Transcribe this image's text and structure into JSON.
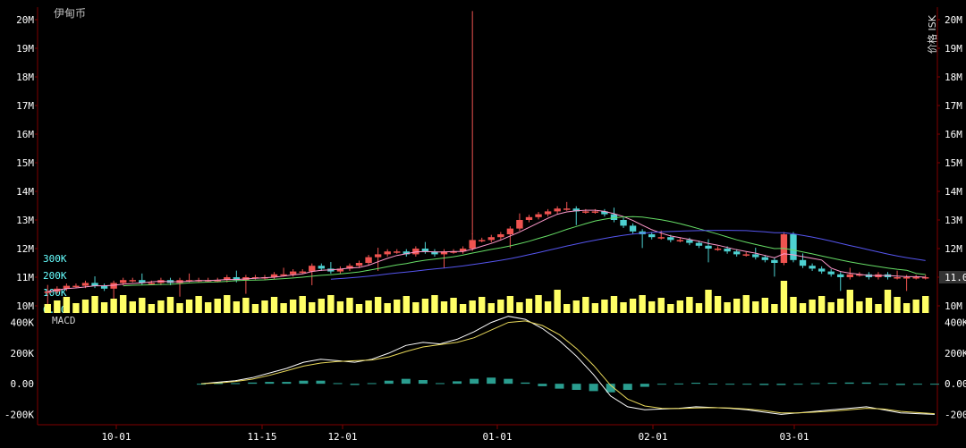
{
  "chart_title": "伊甸币",
  "unit_label": "价格 ISK",
  "current_price_label": "11.0M",
  "macd_label": "MACD",
  "colors": {
    "up": "#ef5350",
    "down": "#4dd0d0",
    "volume": "#ffff66",
    "ma_short": "#ff99cc",
    "ma_mid": "#66dd66",
    "ma_long": "#5555ee",
    "macd_line": "#ffffff",
    "signal_line": "#e8d85a",
    "histogram": "#2a9d8f",
    "axis": "#800000",
    "tick_text": "#ffffff"
  },
  "chart_data": [
    {
      "type": "candlestick",
      "title": "伊甸币",
      "ylabel": "价格 ISK",
      "ylim": [
        9.8,
        20.5
      ],
      "y_ticks": [
        "10M",
        "11M",
        "12M",
        "13M",
        "14M",
        "15M",
        "16M",
        "17M",
        "18M",
        "19M",
        "20M"
      ],
      "x_ticks": [
        "10-01",
        "11-15",
        "12-01",
        "01-01",
        "02-01",
        "03-01"
      ],
      "last_price": "11.0M",
      "price_close_series": [
        10.5,
        10.6,
        10.7,
        10.7,
        10.8,
        10.7,
        10.6,
        10.8,
        10.9,
        10.9,
        10.8,
        10.8,
        10.9,
        10.8,
        10.9,
        10.9,
        10.9,
        10.9,
        10.9,
        11.0,
        10.9,
        11.0,
        11.0,
        11.0,
        11.1,
        11.1,
        11.2,
        11.2,
        11.4,
        11.3,
        11.2,
        11.3,
        11.4,
        11.5,
        11.7,
        11.8,
        11.9,
        11.9,
        11.8,
        12.0,
        11.9,
        11.8,
        11.9,
        11.9,
        12.0,
        12.3,
        12.3,
        12.4,
        12.5,
        12.7,
        13.0,
        13.1,
        13.2,
        13.3,
        13.4,
        13.4,
        13.3,
        13.3,
        13.3,
        13.2,
        13.0,
        12.8,
        12.6,
        12.5,
        12.4,
        12.4,
        12.3,
        12.3,
        12.2,
        12.1,
        12.0,
        12.0,
        11.9,
        11.8,
        11.8,
        11.7,
        11.6,
        11.5,
        12.5,
        11.6,
        11.4,
        11.3,
        11.2,
        11.1,
        11.0,
        11.1,
        11.1,
        11.0,
        11.1,
        11.0,
        11.0,
        11.0,
        11.0,
        11.0
      ],
      "moving_average_series_approx": {
        "short": "follows close closely",
        "mid": "peaks ~13.2M early Jan, ~11.0M at end",
        "long": "from ~11.0M in Dec to peak ~12.7M early Feb, ~11.5M at end"
      },
      "volume_ticks": [
        "0.00",
        "100K",
        "200K",
        "300K"
      ],
      "notable_spike_high": 20.3
    },
    {
      "type": "line",
      "title": "MACD",
      "ylim": [
        -250,
        450
      ],
      "y_ticks": [
        "-200K",
        "0.00",
        "200K",
        "400K"
      ],
      "series": [
        {
          "values": [
            0,
            10,
            20,
            40,
            70,
            100,
            140,
            160,
            150,
            140,
            160,
            200,
            250,
            270,
            260,
            290,
            340,
            400,
            440,
            420,
            360,
            280,
            180,
            60,
            -80,
            -150,
            -170,
            -165,
            -160,
            -150,
            -155,
            -160,
            -170,
            -185,
            -200,
            -190,
            -180,
            -170,
            -160,
            -150,
            -170,
            -190,
            -195,
            -200
          ]
        },
        {
          "values": [
            0,
            5,
            15,
            30,
            55,
            85,
            115,
            135,
            145,
            150,
            155,
            175,
            210,
            240,
            255,
            270,
            300,
            350,
            400,
            410,
            380,
            320,
            230,
            120,
            -10,
            -100,
            -145,
            -160,
            -162,
            -158,
            -156,
            -158,
            -165,
            -175,
            -190,
            -190,
            -185,
            -178,
            -170,
            -160,
            -165,
            -180,
            -188,
            -195
          ]
        }
      ]
    }
  ]
}
